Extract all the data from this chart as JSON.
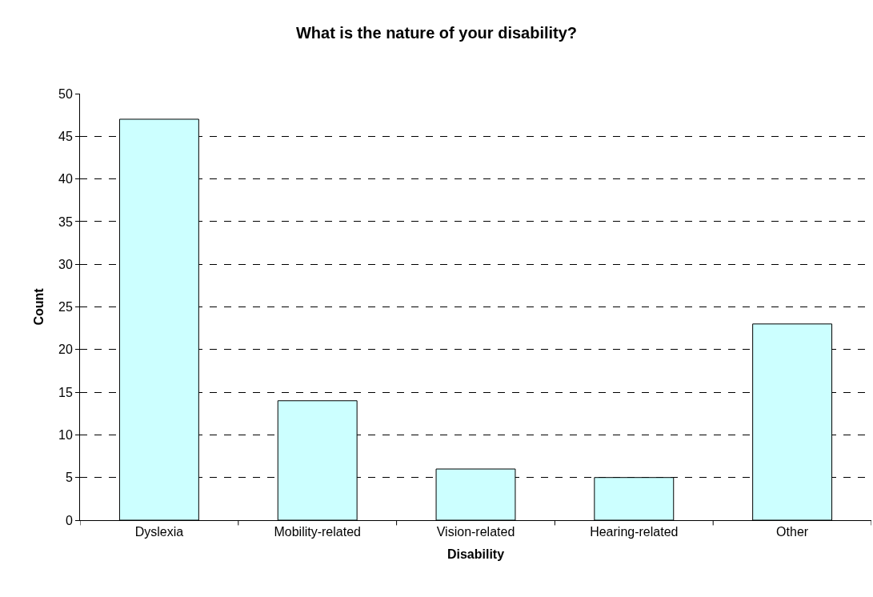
{
  "chart_data": {
    "type": "bar",
    "title": "What is the nature of your disability?",
    "xlabel": "Disability",
    "ylabel": "Count",
    "categories": [
      "Dyslexia",
      "Mobility-related",
      "Vision-related",
      "Hearing-related",
      "Other"
    ],
    "values": [
      47,
      14,
      6,
      5,
      23
    ],
    "color": "#ccffff",
    "ylim": [
      0,
      50
    ],
    "yticks": [
      0,
      5,
      10,
      15,
      20,
      25,
      30,
      35,
      40,
      45,
      50
    ],
    "grid": "y"
  }
}
